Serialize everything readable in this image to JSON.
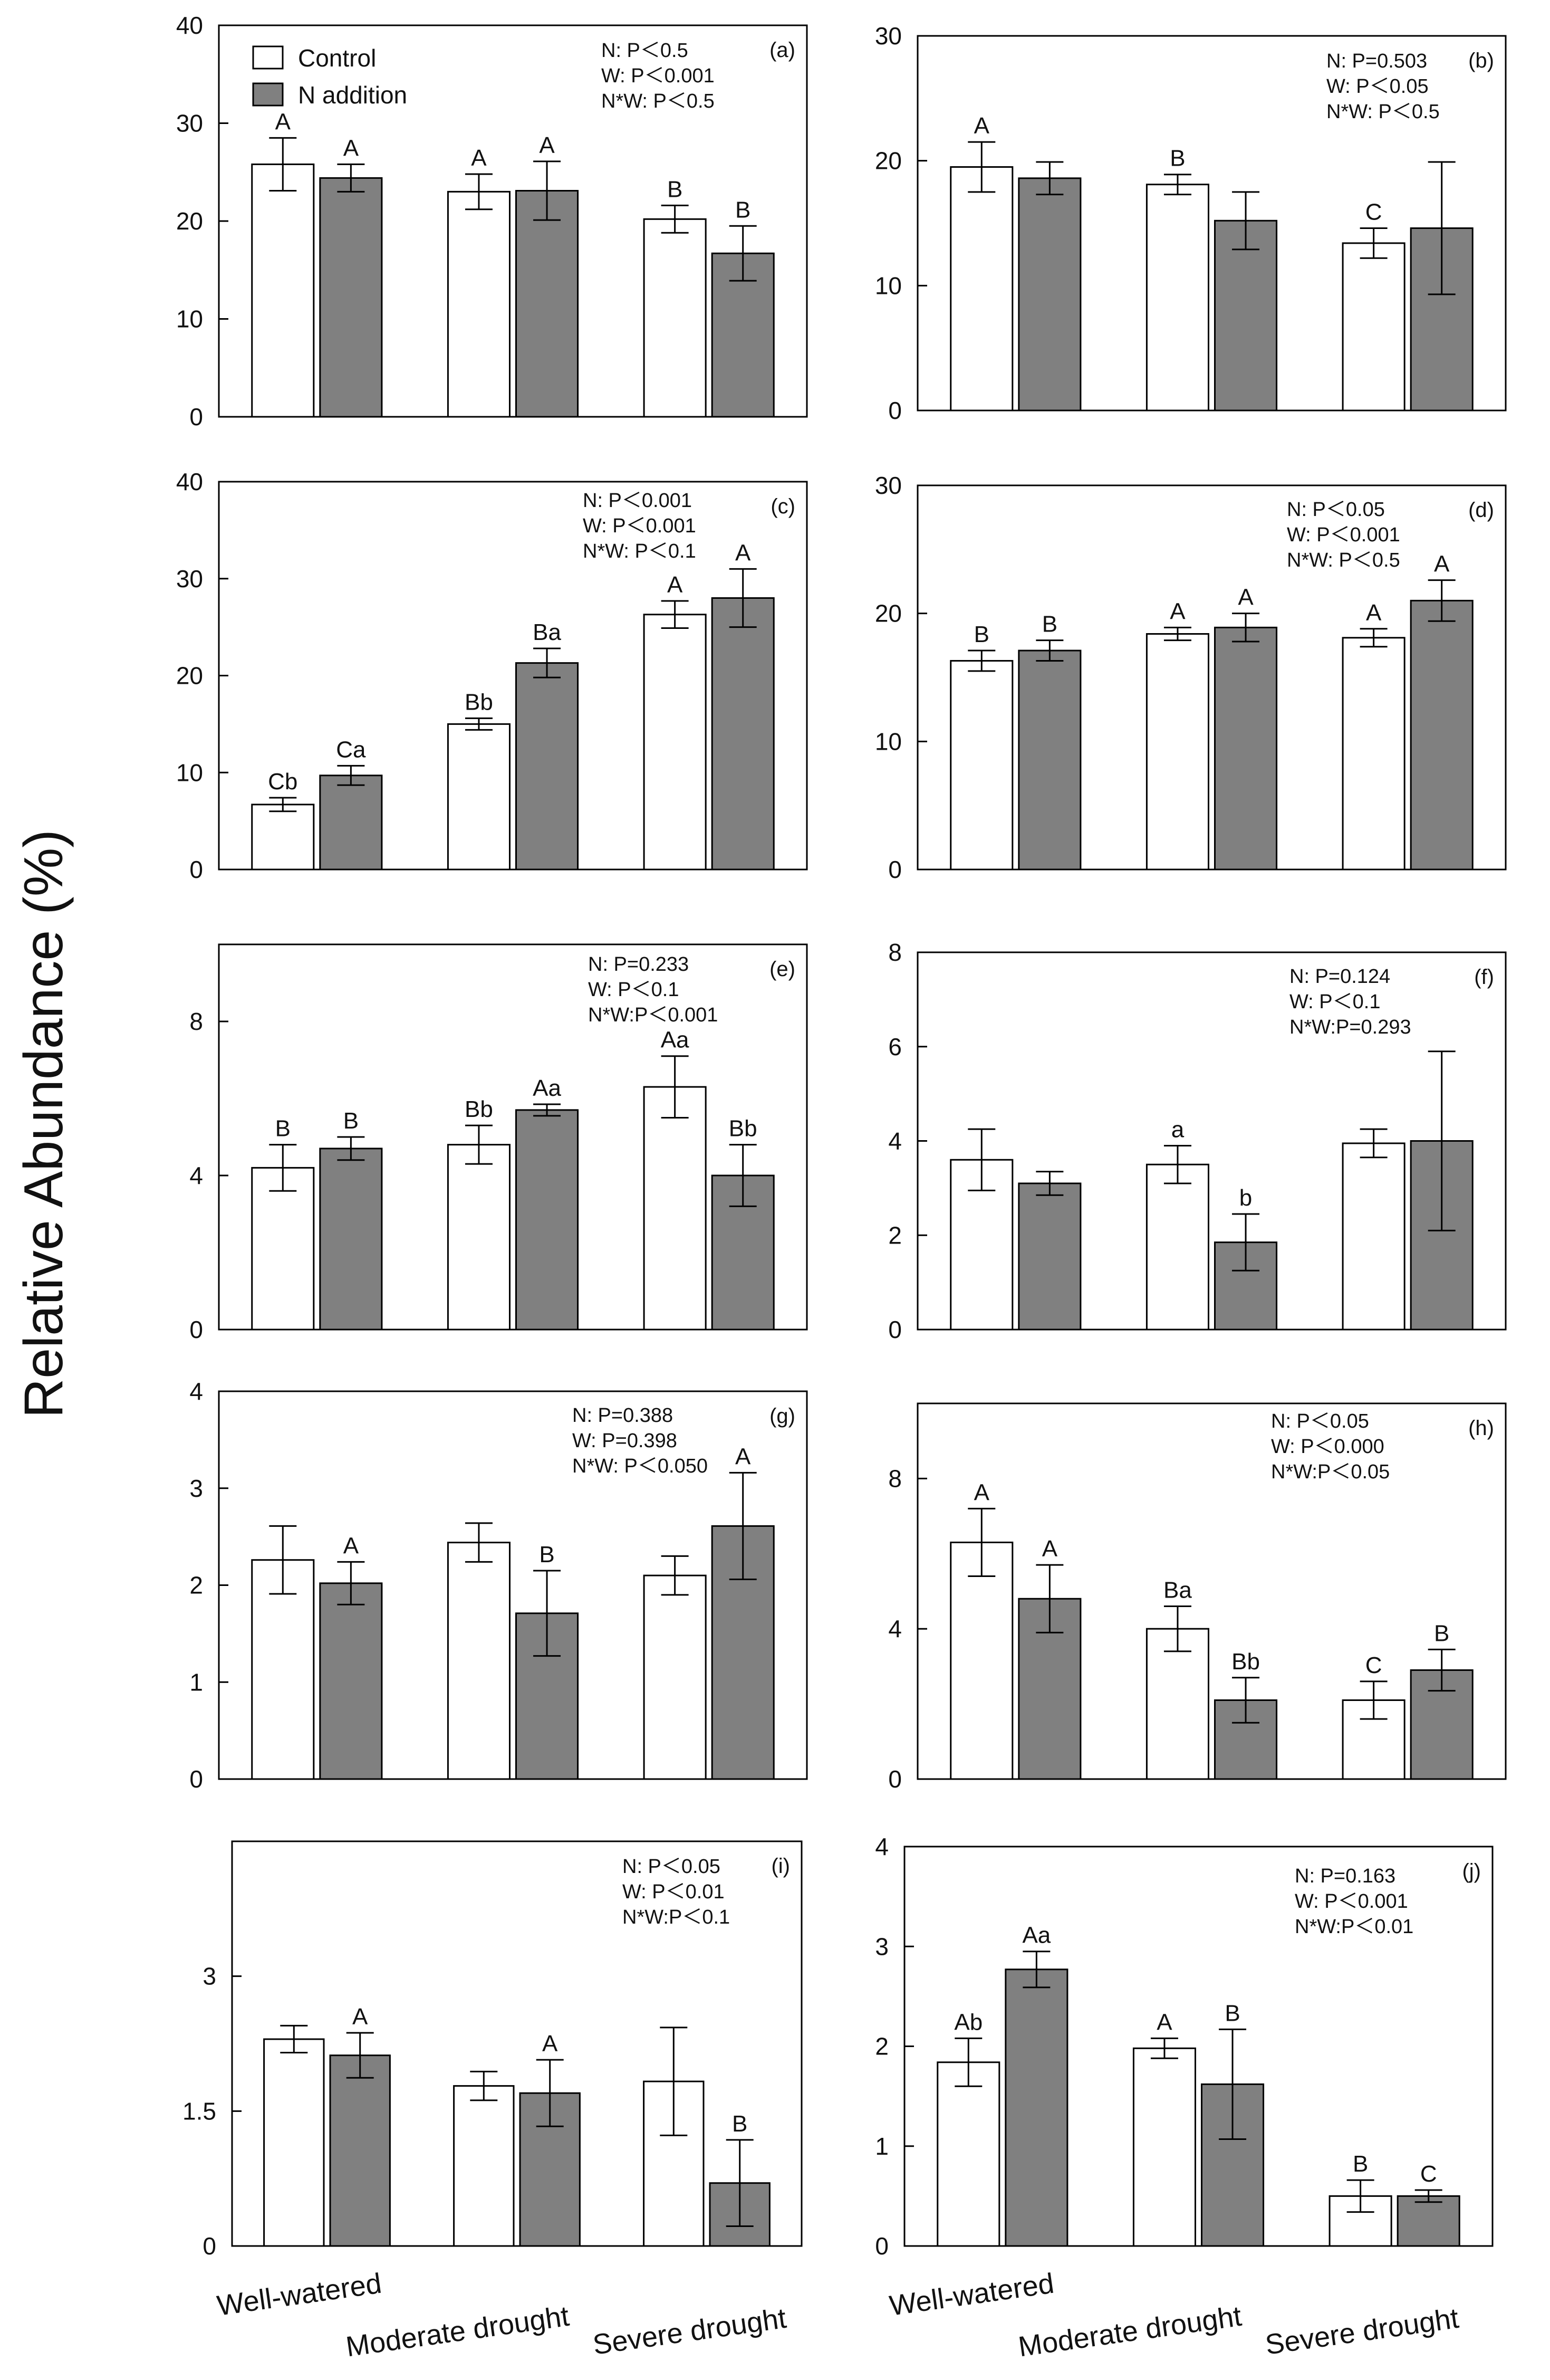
{
  "figure": {
    "y_axis_label": "Relative  Abundance (%)",
    "legend": {
      "control": "Control",
      "n_addition": "N addition"
    },
    "x_categories": [
      "Well-watered",
      "Moderate drought",
      "Severe drought"
    ],
    "colors": {
      "control": "#ffffff",
      "n_addition": "#808080",
      "axis": "#000000"
    }
  },
  "chart_data": [
    {
      "panel": "(a)",
      "type": "bar",
      "ylim": [
        0,
        40
      ],
      "yticks": [
        "0",
        "10",
        "20",
        "30",
        "40"
      ],
      "categories": [
        "Well-watered",
        "Moderate drought",
        "Severe drought"
      ],
      "series": [
        {
          "name": "Control",
          "values": [
            25.8,
            23.0,
            20.2
          ],
          "errors": [
            2.7,
            1.8,
            1.4
          ],
          "labels": [
            "A",
            "A",
            "B"
          ]
        },
        {
          "name": "N addition",
          "values": [
            24.4,
            23.1,
            16.7
          ],
          "errors": [
            1.4,
            3.0,
            2.8
          ],
          "labels": [
            "A",
            "A",
            "B"
          ]
        }
      ],
      "stats": [
        "N: P＜0.5",
        "W: P＜0.001",
        "N*W: P＜0.5"
      ]
    },
    {
      "panel": "(b)",
      "type": "bar",
      "ylim": [
        0,
        30
      ],
      "yticks": [
        "0",
        "10",
        "20",
        "30"
      ],
      "categories": [
        "Well-watered",
        "Moderate drought",
        "Severe drought"
      ],
      "series": [
        {
          "name": "Control",
          "values": [
            19.5,
            18.1,
            13.4
          ],
          "errors": [
            2.0,
            0.8,
            1.2
          ],
          "labels": [
            "A",
            "B",
            "C"
          ]
        },
        {
          "name": "N addition",
          "values": [
            18.6,
            15.2,
            14.6
          ],
          "errors": [
            1.3,
            2.3,
            5.3
          ],
          "labels": [
            "",
            "",
            ""
          ]
        }
      ],
      "stats": [
        "N: P=0.503",
        "W: P＜0.05",
        "N*W: P＜0.5"
      ]
    },
    {
      "panel": "(c)",
      "type": "bar",
      "ylim": [
        0,
        40
      ],
      "yticks": [
        "0",
        "10",
        "20",
        "30",
        "40"
      ],
      "categories": [
        "Well-watered",
        "Moderate drought",
        "Severe drought"
      ],
      "series": [
        {
          "name": "Control",
          "values": [
            6.7,
            15.0,
            26.3
          ],
          "errors": [
            0.7,
            0.6,
            1.4
          ],
          "labels": [
            "Cb",
            "Bb",
            "A"
          ]
        },
        {
          "name": "N addition",
          "values": [
            9.7,
            21.3,
            28.0
          ],
          "errors": [
            1.0,
            1.5,
            3.0
          ],
          "labels": [
            "Ca",
            "Ba",
            "A"
          ]
        }
      ],
      "stats": [
        "N: P＜0.001",
        "W: P＜0.001",
        "N*W: P＜0.1"
      ]
    },
    {
      "panel": "(d)",
      "type": "bar",
      "ylim": [
        0,
        30
      ],
      "yticks": [
        "0",
        "10",
        "20",
        "30"
      ],
      "categories": [
        "Well-watered",
        "Moderate drought",
        "Severe drought"
      ],
      "series": [
        {
          "name": "Control",
          "values": [
            16.3,
            18.4,
            18.1
          ],
          "errors": [
            0.8,
            0.5,
            0.7
          ],
          "labels": [
            "B",
            "A",
            "A"
          ]
        },
        {
          "name": "N addition",
          "values": [
            17.1,
            18.9,
            21.0
          ],
          "errors": [
            0.8,
            1.1,
            1.6
          ],
          "labels": [
            "B",
            "A",
            "A"
          ]
        }
      ],
      "stats": [
        "N: P＜0.05",
        "W: P＜0.001",
        "N*W:    P＜0.5"
      ]
    },
    {
      "panel": "(e)",
      "type": "bar",
      "ylim": [
        0,
        10
      ],
      "yticks": [
        "0",
        "4",
        "8"
      ],
      "categories": [
        "Well-watered",
        "Moderate drought",
        "Severe drought"
      ],
      "series": [
        {
          "name": "Control",
          "values": [
            4.2,
            4.8,
            6.3
          ],
          "errors": [
            0.6,
            0.5,
            0.8
          ],
          "labels": [
            "B",
            "Bb",
            "Aa"
          ]
        },
        {
          "name": "N addition",
          "values": [
            4.7,
            5.7,
            4.0
          ],
          "errors": [
            0.3,
            0.15,
            0.8
          ],
          "labels": [
            "B",
            "Aa",
            "Bb"
          ]
        }
      ],
      "stats": [
        "N: P=0.233",
        "W: P＜0.1",
        "N*W:P＜0.001"
      ]
    },
    {
      "panel": "(f)",
      "type": "bar",
      "ylim": [
        0,
        8
      ],
      "yticks": [
        "0",
        "2",
        "4",
        "6",
        "8"
      ],
      "categories": [
        "Well-watered",
        "Moderate drought",
        "Severe drought"
      ],
      "series": [
        {
          "name": "Control",
          "values": [
            3.6,
            3.5,
            3.95
          ],
          "errors": [
            0.65,
            0.4,
            0.3
          ],
          "labels": [
            "",
            "a",
            ""
          ]
        },
        {
          "name": "N addition",
          "values": [
            3.1,
            1.85,
            4.0
          ],
          "errors": [
            0.25,
            0.6,
            1.9
          ],
          "labels": [
            "",
            "b",
            ""
          ]
        }
      ],
      "stats": [
        "N: P=0.124",
        "W: P＜0.1",
        "N*W:P=0.293"
      ]
    },
    {
      "panel": "(g)",
      "type": "bar",
      "ylim": [
        0,
        4
      ],
      "yticks": [
        "0",
        "1",
        "2",
        "3",
        "4"
      ],
      "categories": [
        "Well-watered",
        "Moderate drought",
        "Severe drought"
      ],
      "series": [
        {
          "name": "Control",
          "values": [
            2.26,
            2.44,
            2.1
          ],
          "errors": [
            0.35,
            0.2,
            0.2
          ],
          "labels": [
            "",
            "",
            ""
          ]
        },
        {
          "name": "N addition",
          "values": [
            2.02,
            1.71,
            2.61
          ],
          "errors": [
            0.22,
            0.44,
            0.55
          ],
          "labels": [
            "A",
            "B",
            "A"
          ]
        }
      ],
      "stats": [
        "N: P=0.388",
        "W: P=0.398",
        "N*W: P＜0.050"
      ]
    },
    {
      "panel": "(h)",
      "type": "bar",
      "ylim": [
        0,
        10
      ],
      "yticks": [
        "0",
        "4",
        "8"
      ],
      "categories": [
        "Well-watered",
        "Moderate drought",
        "Severe drought"
      ],
      "series": [
        {
          "name": "Control",
          "values": [
            6.3,
            4.0,
            2.1
          ],
          "errors": [
            0.9,
            0.6,
            0.5
          ],
          "labels": [
            "A",
            "Ba",
            "C"
          ]
        },
        {
          "name": "N addition",
          "values": [
            4.8,
            2.1,
            2.9
          ],
          "errors": [
            0.9,
            0.6,
            0.55
          ],
          "labels": [
            "A",
            "Bb",
            "B"
          ]
        }
      ],
      "stats": [
        "N: P＜0.05",
        "W: P＜0.000",
        "N*W:P＜0.05"
      ]
    },
    {
      "panel": "(i)",
      "type": "bar",
      "ylim": [
        0,
        4.5
      ],
      "yticks": [
        "0",
        "1.5",
        "3"
      ],
      "categories": [
        "Well-watered",
        "Moderate drought",
        "Severe drought"
      ],
      "series": [
        {
          "name": "Control",
          "values": [
            2.3,
            1.78,
            1.83
          ],
          "errors": [
            0.15,
            0.16,
            0.6
          ],
          "labels": [
            "",
            "",
            ""
          ]
        },
        {
          "name": "N addition",
          "values": [
            2.12,
            1.7,
            0.7
          ],
          "errors": [
            0.25,
            0.37,
            0.48
          ],
          "labels": [
            "A",
            "A",
            "B"
          ]
        }
      ],
      "stats": [
        "N: P＜0.05",
        "W: P＜0.01",
        "N*W:P＜0.1"
      ]
    },
    {
      "panel": "(j)",
      "type": "bar",
      "ylim": [
        0,
        4
      ],
      "yticks": [
        "0",
        "1",
        "2",
        "3",
        "4"
      ],
      "categories": [
        "Well-watered",
        "Moderate drought",
        "Severe drought"
      ],
      "series": [
        {
          "name": "Control",
          "values": [
            1.84,
            1.98,
            0.5
          ],
          "errors": [
            0.24,
            0.1,
            0.16
          ],
          "labels": [
            "Ab",
            "A",
            "B"
          ]
        },
        {
          "name": "N addition",
          "values": [
            2.77,
            1.62,
            0.5
          ],
          "errors": [
            0.18,
            0.55,
            0.06
          ],
          "labels": [
            "Aa",
            "B",
            "C"
          ]
        }
      ],
      "stats": [
        "N: P=0.163",
        "W: P＜0.001",
        "N*W:P＜0.01"
      ]
    }
  ]
}
